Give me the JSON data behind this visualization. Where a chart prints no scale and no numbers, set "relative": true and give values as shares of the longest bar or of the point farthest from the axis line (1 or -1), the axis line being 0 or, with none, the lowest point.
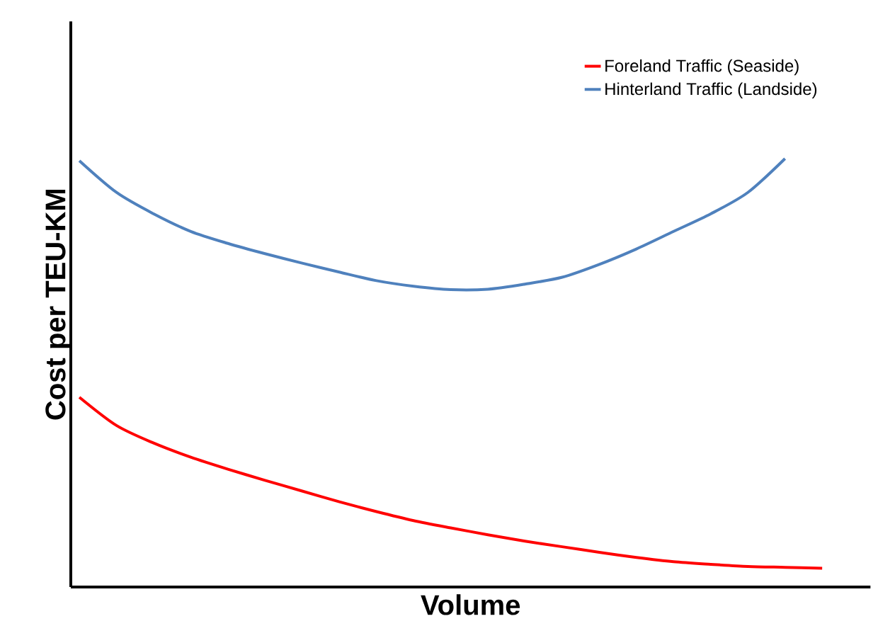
{
  "chart_data": {
    "type": "line",
    "relative": true,
    "xlabel": "Volume",
    "ylabel": "Cost per TEU-KM",
    "legend": "top right",
    "categories": [
      null,
      null,
      null,
      null,
      null,
      null,
      null,
      null,
      null,
      null,
      null,
      null,
      null,
      null,
      null,
      null,
      null,
      null,
      null,
      null,
      null
    ],
    "series": [
      {
        "name": "Foreland Traffic  (Seaside)",
        "color": "#ff0000",
        "values": [
          0.443,
          0.377,
          0.336,
          0.303,
          0.275,
          0.249,
          0.224,
          0.199,
          0.176,
          0.155,
          0.138,
          0.122,
          0.107,
          0.094,
          0.081,
          0.069,
          0.059,
          0.053,
          0.048,
          0.046,
          0.044
        ]
      },
      {
        "name": "Hinterland Traffic  (Landside)",
        "color": "#4f81bd",
        "values": [
          0.995,
          0.921,
          0.871,
          0.83,
          0.802,
          0.778,
          0.756,
          0.735,
          0.715,
          0.702,
          0.694,
          0.695,
          0.707,
          0.723,
          0.753,
          0.789,
          0.83,
          0.871,
          0.921,
          1.0,
          null
        ]
      }
    ]
  }
}
